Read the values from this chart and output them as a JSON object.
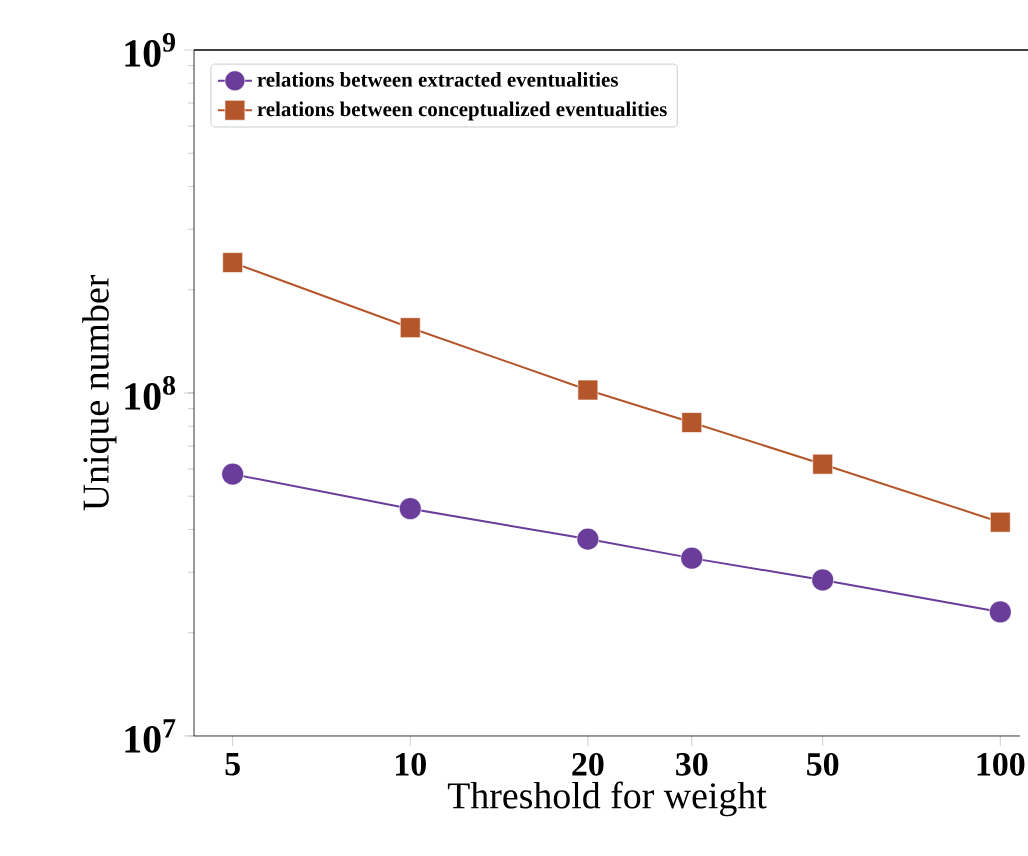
{
  "chart_data": {
    "type": "line",
    "xlabel": "Threshold for weight",
    "ylabel": "Unique number",
    "x": [
      5,
      10,
      20,
      30,
      50,
      100
    ],
    "log": "xy",
    "xlim": [
      4.3,
      108
    ],
    "ylim": [
      10000000,
      1000000000
    ],
    "xticks": [
      5,
      10,
      20,
      30,
      50,
      100
    ],
    "yticks": [
      {
        "value": 10000000,
        "label": "10$^{7}$"
      },
      {
        "value": 100000000,
        "label": "10$^{8}$"
      },
      {
        "value": 1000000000,
        "label": "10$^{9}$"
      }
    ],
    "legend": "top left",
    "grid": false,
    "series": [
      {
        "name": "relations between extracted eventualities",
        "color": "#6a3d9a",
        "marker": "circle",
        "values": [
          58000000,
          46000000,
          37500000,
          33000000,
          28500000,
          23000000
        ]
      },
      {
        "name": "relations between conceptualized eventualities",
        "color": "#b5562a",
        "marker": "square",
        "values": [
          240000000,
          155000000,
          102000000,
          82000000,
          62000000,
          42000000
        ]
      }
    ]
  }
}
